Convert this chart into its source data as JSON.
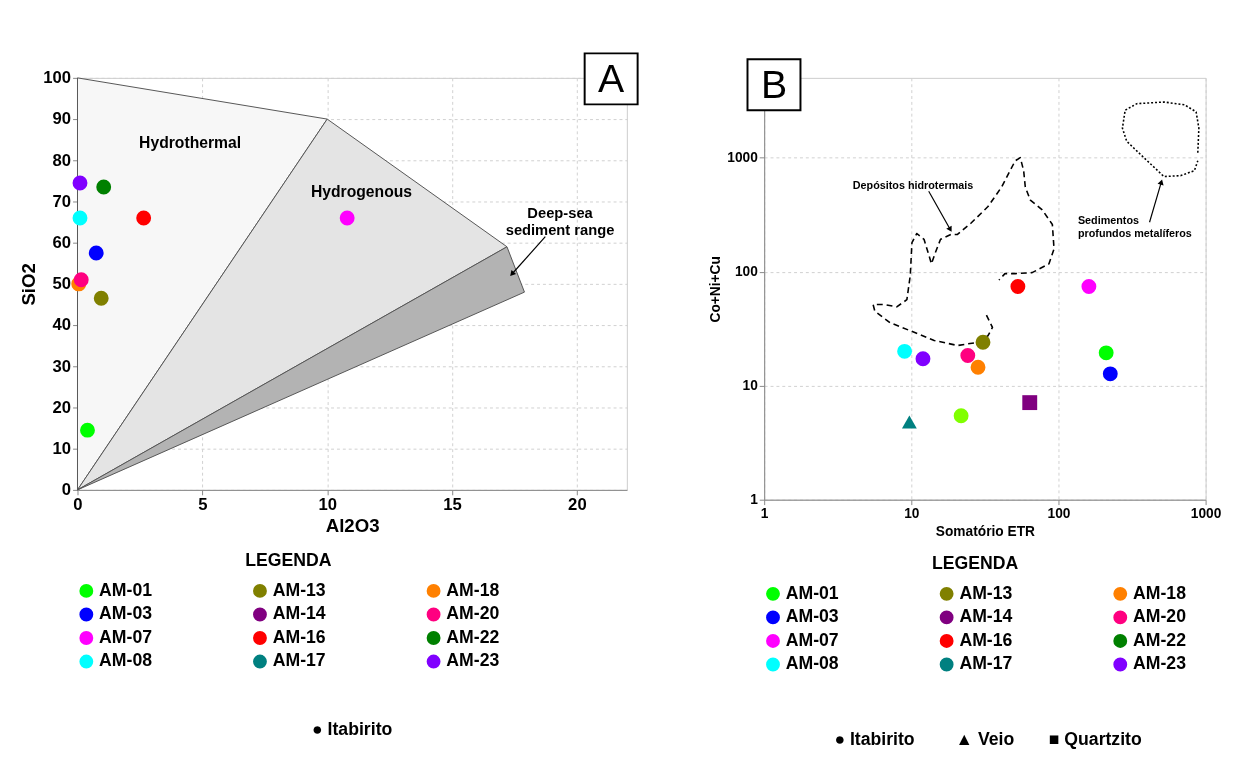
{
  "chart_data": [
    {
      "type": "scatter",
      "title": "A",
      "xlabel": "Al2O3",
      "ylabel": "SiO2",
      "legend_title": "LEGENDA",
      "legend": "bottom",
      "grid": true,
      "xlim": [
        0,
        22
      ],
      "xticks": [
        0,
        5,
        10,
        15,
        20
      ],
      "ylim": [
        0,
        100
      ],
      "yticks": [
        0,
        10,
        20,
        30,
        40,
        50,
        60,
        70,
        80,
        90,
        100
      ],
      "series": [
        {
          "type": "area",
          "color": "#f7f7f7",
          "x": [
            0,
            0,
            10,
            0
          ],
          "values": [
            0,
            100,
            90,
            0
          ]
        },
        {
          "type": "area",
          "color": "#e4e4e4",
          "x": [
            0,
            10,
            17.2,
            0
          ],
          "values": [
            0,
            90,
            59,
            0
          ]
        },
        {
          "type": "area",
          "color": "#b3b3b3",
          "x": [
            0,
            17.2,
            17.9,
            0
          ],
          "values": [
            0,
            59,
            48,
            0
          ]
        },
        {
          "name": "AM-01",
          "color": "#00ff00",
          "marker": "circle",
          "x": [
            0.4
          ],
          "values": [
            14.5
          ]
        },
        {
          "name": "AM-03",
          "color": "#0000ff",
          "marker": "circle",
          "x": [
            0.75
          ],
          "values": [
            57.5
          ]
        },
        {
          "name": "AM-07",
          "color": "#ff00ff",
          "marker": "circle",
          "x": [
            10.8
          ],
          "values": [
            66
          ]
        },
        {
          "name": "AM-08",
          "color": "#00ffff",
          "marker": "circle",
          "x": [
            0.1
          ],
          "values": [
            66
          ]
        },
        {
          "name": "AM-13",
          "color": "#808000",
          "marker": "circle",
          "x": [
            0.95
          ],
          "values": [
            46.5
          ]
        },
        {
          "name": "AM-14",
          "color": "#800080"
        },
        {
          "name": "AM-16",
          "color": "#ff0000",
          "marker": "circle",
          "x": [
            2.65
          ],
          "values": [
            66
          ]
        },
        {
          "name": "AM-17",
          "color": "#008080"
        },
        {
          "name": "AM-18",
          "color": "#ff8000",
          "marker": "circle",
          "x": [
            0.05
          ],
          "values": [
            50
          ]
        },
        {
          "name": "AM-20",
          "color": "#ff0080",
          "marker": "circle",
          "x": [
            0.15
          ],
          "values": [
            51
          ]
        },
        {
          "name": "AM-22",
          "color": "#008000",
          "marker": "circle",
          "x": [
            1.05
          ],
          "values": [
            73.5
          ]
        },
        {
          "name": "AM-23",
          "color": "#8000ff",
          "marker": "circle",
          "x": [
            0.1
          ],
          "values": [
            74.5
          ]
        }
      ],
      "annotations": [
        "Hydrothermal",
        "Hydrogenous",
        {
          "text": "Deep-sea\nsediment range",
          "x": 17.4,
          "y": 52.4
        },
        "● Itabirito"
      ]
    },
    {
      "type": "scatter",
      "title": "B",
      "xlabel": "Somatório ETR",
      "ylabel": "Co+Ni+Cu",
      "legend_title": "LEGENDA",
      "legend": "bottom",
      "grid": true,
      "log": "xy",
      "xlim": [
        1,
        1000
      ],
      "xticks": [
        1,
        10,
        100,
        1000
      ],
      "ylim": [
        1,
        5000
      ],
      "yticks": [
        1,
        10,
        100,
        1000
      ],
      "series": [
        {
          "type": "line",
          "line_style": "dashed",
          "color": "#000000",
          "x": [
            32.4,
            35.6,
            33.2,
            28.4,
            20.6,
            14.3,
            9.84,
            7.16,
            5.65,
            5.5,
            6.62,
            7.96,
            9.33,
            9.84,
            10.1,
            10.9,
            12.2,
            13.2,
            13.7,
            14.6,
            15.8,
            18.6,
            20.6,
            25.5,
            33.2,
            41.1,
            50.8,
            55.0,
            58.0,
            59.5,
            64.4,
            77.6,
            90.9,
            93.3,
            86.2,
            66.2,
            50.8,
            43.3,
            39.4
          ],
          "values": [
            41.6,
            32.4,
            27.4,
            24.0,
            22.5,
            24.9,
            30.3,
            35.7,
            45.0,
            51.4,
            51.4,
            49.1,
            56.7,
            93.0,
            180,
            216,
            192,
            138,
            117,
            148,
            192,
            212,
            212,
            267,
            372,
            552,
            936,
            1000,
            768,
            552,
            424,
            348,
            259,
            158,
            117,
            98,
            96,
            96,
            84.3
          ]
        },
        {
          "type": "line",
          "line_style": "dotted",
          "color": "#000000",
          "x": [
            885,
            900,
            862,
            716,
            521,
            341,
            284,
            272,
            291,
            360,
            521,
            679,
            839,
            885
          ],
          "values": [
            1104,
            1811,
            2518,
            2912,
            3070,
            2970,
            2603,
            1811,
            1390,
            1069,
            682,
            695,
            768,
            936
          ]
        },
        {
          "name": "AM-01",
          "color": "#00ff00",
          "marker": "circle",
          "x": [
            211
          ],
          "values": [
            19.4
          ]
        },
        {
          "name": "AM-03",
          "color": "#0000ff",
          "marker": "circle",
          "x": [
            225
          ],
          "values": [
            12.7
          ]
        },
        {
          "name": "AM-07",
          "color": "#ff00ff",
          "marker": "circle",
          "x": [
            161
          ],
          "values": [
            74
          ]
        },
        {
          "name": "AM-08",
          "color": "#00ffff",
          "marker": "circle",
          "x": [
            9.0
          ],
          "values": [
            20
          ]
        },
        {
          "name": "AM-13",
          "color": "#808000",
          "marker": "circle",
          "x": [
            30.7
          ],
          "values": [
            24
          ]
        },
        {
          "name": "AM-14",
          "color": "#800080",
          "marker": "square",
          "x": [
            63.8
          ],
          "values": [
            7.1
          ]
        },
        {
          "name": "AM-16",
          "color": "#ff0000",
          "marker": "circle",
          "x": [
            53
          ],
          "values": [
            74
          ]
        },
        {
          "name": "AM-17",
          "color": "#008080",
          "marker": "triangle",
          "x": [
            9.7
          ],
          "values": [
            4.8
          ]
        },
        {
          "name": "AM-18",
          "color": "#ff8000",
          "marker": "circle",
          "x": [
            28.4
          ],
          "values": [
            14.5
          ]
        },
        {
          "name": "AM-20",
          "color": "#ff0080",
          "marker": "circle",
          "x": [
            24.2
          ],
          "values": [
            18.4
          ]
        },
        {
          "name": "AM-22",
          "color": "#008000"
        },
        {
          "name": "AM-23",
          "color": "#8000ff",
          "marker": "circle",
          "x": [
            12
          ],
          "values": [
            17.2
          ]
        },
        {
          "color": "#80ff00",
          "marker": "circle",
          "x": [
            21.8
          ],
          "values": [
            5.45
          ]
        }
      ],
      "annotations": [
        {
          "text": "Depósitos hidrotermais",
          "x": 18.4,
          "y": 234
        },
        {
          "text": "Sedimentos\nprofundos metalíferos",
          "x": 500,
          "y": 610
        },
        "● Itabirito",
        "▲ Veio",
        "■ Quartzito"
      ]
    }
  ]
}
